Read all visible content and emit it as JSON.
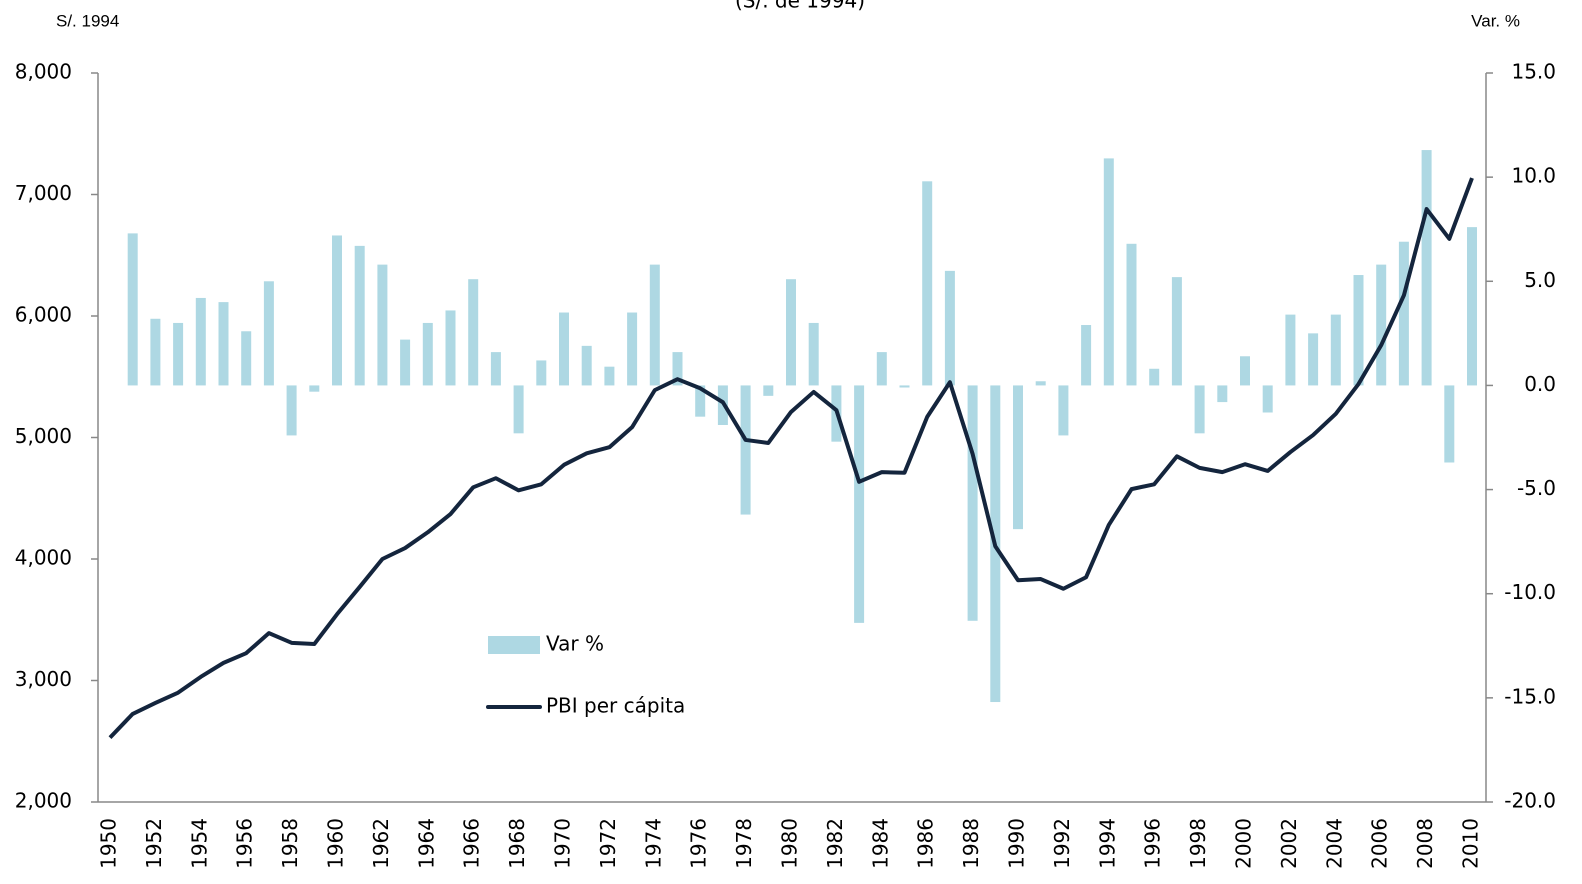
{
  "chart_data": {
    "type": "bar_line",
    "title": "(S/. de 1994)",
    "ylabel": "S/. 1994",
    "y2label": "Var. %",
    "categories": [
      "1950",
      null,
      "1952",
      null,
      "1954",
      null,
      "1956",
      null,
      "1958",
      null,
      "1960",
      null,
      "1962",
      null,
      "1964",
      null,
      "1966",
      null,
      "1968",
      null,
      "1970",
      null,
      "1972",
      null,
      "1974",
      null,
      "1976",
      null,
      "1978",
      null,
      "1980",
      null,
      "1982",
      null,
      "1984",
      null,
      "1986",
      null,
      "1988",
      null,
      "1990",
      null,
      "1992",
      null,
      "1994",
      null,
      "1996",
      null,
      "1998",
      null,
      "2000",
      null,
      "2002",
      null,
      "2004",
      null,
      "2006",
      null,
      "2008",
      null,
      "2010"
    ],
    "series": [
      {
        "name": "Var %",
        "type": "bar",
        "axis": "y2",
        "color": "#aed8e3",
        "values": [
          null,
          7.3,
          3.2,
          3.0,
          4.2,
          4.0,
          2.6,
          5.0,
          -2.4,
          -0.3,
          7.2,
          6.7,
          5.8,
          2.2,
          3.0,
          3.6,
          5.1,
          1.6,
          -2.3,
          1.2,
          3.5,
          1.9,
          0.9,
          3.5,
          5.8,
          1.6,
          -1.5,
          -1.9,
          -6.2,
          -0.5,
          5.1,
          3.0,
          -2.7,
          -11.4,
          1.6,
          -0.1,
          9.8,
          5.5,
          -11.3,
          -15.2,
          -6.9,
          0.2,
          -2.4,
          2.9,
          10.9,
          6.8,
          0.8,
          5.2,
          -2.3,
          -0.8,
          1.4,
          -1.3,
          3.4,
          2.5,
          3.4,
          5.3,
          5.8,
          6.9,
          11.3,
          -3.7,
          7.6
        ]
      },
      {
        "name": "PBI per cápita",
        "type": "line",
        "axis": "y",
        "color": "#14253d",
        "values": [
          2530,
          2725,
          2815,
          2900,
          3030,
          3145,
          3225,
          3390,
          3310,
          3300,
          3545,
          3770,
          4000,
          4090,
          4220,
          4370,
          4590,
          4665,
          4565,
          4615,
          4775,
          4870,
          4920,
          5085,
          5390,
          5480,
          5405,
          5290,
          4980,
          4955,
          5210,
          5375,
          5225,
          4635,
          4715,
          4710,
          5170,
          5455,
          4865,
          4105,
          3825,
          3835,
          3755,
          3850,
          4280,
          4575,
          4615,
          4845,
          4750,
          4715,
          4780,
          4725,
          4880,
          5020,
          5195,
          5440,
          5760,
          6170,
          6880,
          6635,
          7135
        ]
      }
    ],
    "ylim": [
      2000,
      8000
    ],
    "yticks": [
      {
        "value": 2000,
        "label": "2,000"
      },
      {
        "value": 3000,
        "label": "3,000"
      },
      {
        "value": 4000,
        "label": "4,000"
      },
      {
        "value": 5000,
        "label": "5,000"
      },
      {
        "value": 6000,
        "label": "6,000"
      },
      {
        "value": 7000,
        "label": "7,000"
      },
      {
        "value": 8000,
        "label": "8,000"
      }
    ],
    "y2lim": [
      -20,
      15
    ],
    "y2ticks": [
      {
        "value": -20,
        "label": "-20.0"
      },
      {
        "value": -15,
        "label": "-15.0"
      },
      {
        "value": -10,
        "label": "-10.0"
      },
      {
        "value": -5,
        "label": "-5.0"
      },
      {
        "value": 0,
        "label": "0.0"
      },
      {
        "value": 5,
        "label": "5.0"
      },
      {
        "value": 10,
        "label": "10.0"
      },
      {
        "value": 15,
        "label": "15.0"
      }
    ],
    "grid": false
  }
}
